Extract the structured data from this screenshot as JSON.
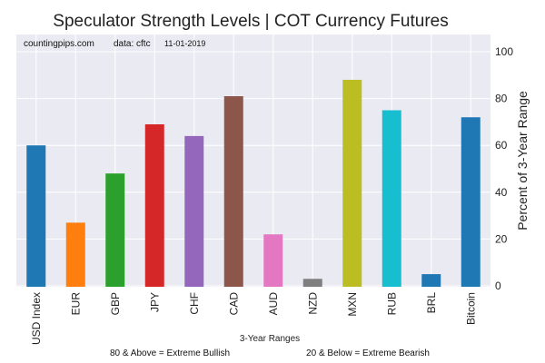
{
  "chart_data": {
    "type": "bar",
    "title": "Speculator Strength Levels | COT Currency Futures",
    "annotation": {
      "source": "countingpips.com",
      "data": "data: cftc",
      "date": "11-01-2019"
    },
    "categories": [
      "USD Index",
      "EUR",
      "GBP",
      "JPY",
      "CHF",
      "CAD",
      "AUD",
      "NZD",
      "MXN",
      "RUB",
      "BRL",
      "Bitcoin"
    ],
    "values": [
      60,
      27,
      48,
      69,
      64,
      81,
      22,
      3,
      88,
      75,
      5,
      72
    ],
    "colors": [
      "#1f77b4",
      "#ff7f0e",
      "#2ca02c",
      "#d62728",
      "#9467bd",
      "#8c564b",
      "#e377c2",
      "#7f7f7f",
      "#bcbd22",
      "#17becf",
      "#1f77b4",
      "#1f77b4"
    ],
    "xlabel": "3-Year Ranges",
    "ylabel": "Percent of 3-Year Range",
    "ylim": [
      0,
      100
    ],
    "yticks": [
      0,
      20,
      40,
      60,
      80,
      100
    ],
    "y_axis_side": "right",
    "grid": true,
    "footnotes": {
      "left": "80 & Above = Extreme Bullish",
      "right": "20 & Below = Extreme Bearish"
    }
  }
}
